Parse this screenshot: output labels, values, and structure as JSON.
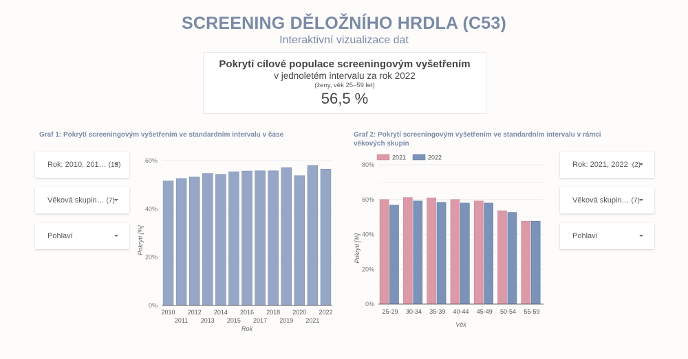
{
  "header": {
    "title": "SCREENING DĚLOŽNÍHO HRDLA (C53)",
    "subtitle": "Interaktivní vizualizace dat"
  },
  "kpi": {
    "heading": "Pokrytí cílové populace screeningovým vyšetřením",
    "line1": "v jednoletém intervalu za rok 2022",
    "line2": "(ženy, věk 25–59 let)",
    "value": "56,5 %"
  },
  "graf1": {
    "title": "Graf 1: Pokrytí screeningovým vyšetřením ve standardním intervalu v čase",
    "filters": [
      {
        "label": "Rok: 2010, 201…",
        "count": "(13)"
      },
      {
        "label": "Věková skupin…",
        "count": "(7)"
      },
      {
        "label": "Pohlaví",
        "count": ""
      }
    ]
  },
  "graf2": {
    "title_line1": "Graf 2: Pokrytí screeningovým vyšetřením ve standardním intervalu v rámci",
    "title_line2": "věkových skupin",
    "filters": [
      {
        "label": "Rok: 2021, 2022",
        "count": "(2)"
      },
      {
        "label": "Věková skupin…",
        "count": "(7)"
      },
      {
        "label": "Pohlaví",
        "count": ""
      }
    ]
  },
  "colors": {
    "bar1": "#95a6c6",
    "bar2021": "#dc9aa9",
    "bar2022": "#7b93b9",
    "title": "#7a8aa6"
  },
  "chart_data": [
    {
      "type": "bar",
      "title": "Graf 1: Pokrytí screeningovým vyšetřením ve standardním intervalu v čase",
      "xlabel": "Rok",
      "ylabel": "Pokrytí [%]",
      "ylim": [
        0,
        60
      ],
      "yticks": [
        "0%",
        "20%",
        "40%",
        "60%"
      ],
      "categories": [
        "2010",
        "2011",
        "2012",
        "2013",
        "2014",
        "2015",
        "2016",
        "2017",
        "2018",
        "2019",
        "2020",
        "2021",
        "2022"
      ],
      "values": [
        51.6,
        52.6,
        53.2,
        54.7,
        54.3,
        55.4,
        55.7,
        55.8,
        55.8,
        57.1,
        53.8,
        58.0,
        56.5
      ],
      "grid": true
    },
    {
      "type": "bar",
      "title": "Graf 2: Pokrytí screeningovým vyšetřením ve standardním intervalu v rámci věkových skupin",
      "xlabel": "Věk",
      "ylabel": "Pokrytí [%]",
      "ylim": [
        0,
        80
      ],
      "yticks": [
        "0%",
        "20%",
        "40%",
        "60%",
        "80%"
      ],
      "categories": [
        "25-29",
        "30-34",
        "35-39",
        "40-44",
        "45-49",
        "50-54",
        "55-59"
      ],
      "series": [
        {
          "name": "2021",
          "values": [
            60.0,
            61.2,
            61.0,
            60.0,
            59.2,
            53.6,
            47.6
          ]
        },
        {
          "name": "2022",
          "values": [
            56.8,
            59.2,
            58.4,
            58.0,
            58.0,
            52.6,
            47.6
          ]
        }
      ],
      "legend_position": "top-left",
      "grid": true
    }
  ]
}
